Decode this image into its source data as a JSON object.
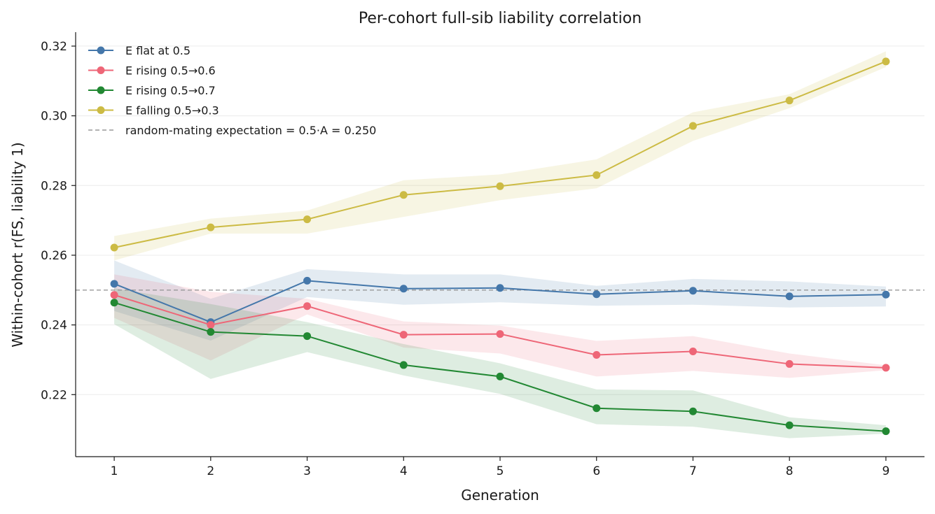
{
  "chart_data": {
    "type": "line",
    "title": "Per-cohort full-sib liability correlation",
    "xlabel": "Generation",
    "ylabel": "Within-cohort r(FS, liability 1)",
    "x": [
      1,
      2,
      3,
      4,
      5,
      6,
      7,
      8,
      9
    ],
    "xticks": [
      "1",
      "2",
      "3",
      "4",
      "5",
      "6",
      "7",
      "8",
      "9"
    ],
    "xlim": [
      0.6,
      9.4
    ],
    "ylim": [
      0.2022,
      0.324
    ],
    "yticks": [
      "0.22",
      "0.24",
      "0.26",
      "0.28",
      "0.30",
      "0.32"
    ],
    "grid": "horizontal",
    "legend_position": "top-left",
    "series": [
      {
        "name": "E flat at 0.5",
        "color": "#4477aa",
        "values": [
          0.2518,
          0.2408,
          0.2527,
          0.2504,
          0.2506,
          0.2488,
          0.2498,
          0.2482,
          0.2487
        ],
        "lower": [
          0.244,
          0.2355,
          0.248,
          0.2458,
          0.2465,
          0.2455,
          0.2458,
          0.245,
          0.2453
        ],
        "upper": [
          0.2585,
          0.2475,
          0.256,
          0.2545,
          0.2545,
          0.2512,
          0.2532,
          0.2525,
          0.251
        ]
      },
      {
        "name": "E rising 0.5→0.6",
        "color": "#ee6677",
        "values": [
          0.2486,
          0.24,
          0.2454,
          0.2372,
          0.2374,
          0.2314,
          0.2324,
          0.2288,
          0.2277
        ],
        "lower": [
          0.242,
          0.2298,
          0.243,
          0.2335,
          0.2318,
          0.2252,
          0.2268,
          0.2248,
          0.227
        ],
        "upper": [
          0.2545,
          0.2495,
          0.2475,
          0.241,
          0.2398,
          0.2354,
          0.2368,
          0.2318,
          0.2284
        ]
      },
      {
        "name": "E rising 0.5→0.7",
        "color": "#228833",
        "values": [
          0.2464,
          0.238,
          0.2368,
          0.2285,
          0.2252,
          0.2161,
          0.2152,
          0.2112,
          0.2095
        ],
        "lower": [
          0.2402,
          0.2245,
          0.2322,
          0.2255,
          0.2202,
          0.2115,
          0.2108,
          0.2075,
          0.2088
        ],
        "upper": [
          0.2505,
          0.246,
          0.2408,
          0.2345,
          0.229,
          0.2215,
          0.2212,
          0.2135,
          0.2112
        ]
      },
      {
        "name": "E falling 0.5→0.3",
        "color": "#ccbb44",
        "values": [
          0.2622,
          0.268,
          0.2703,
          0.2773,
          0.2798,
          0.283,
          0.2971,
          0.3044,
          0.3156
        ],
        "lower": [
          0.2585,
          0.2662,
          0.2662,
          0.271,
          0.2758,
          0.2792,
          0.2928,
          0.3022,
          0.314
        ],
        "upper": [
          0.2655,
          0.2705,
          0.2728,
          0.2815,
          0.2832,
          0.2875,
          0.301,
          0.3062,
          0.3185
        ]
      }
    ],
    "reference_line": {
      "label": "random-mating expectation = 0.5·A = 0.250",
      "y": 0.25,
      "color": "#999999"
    }
  }
}
